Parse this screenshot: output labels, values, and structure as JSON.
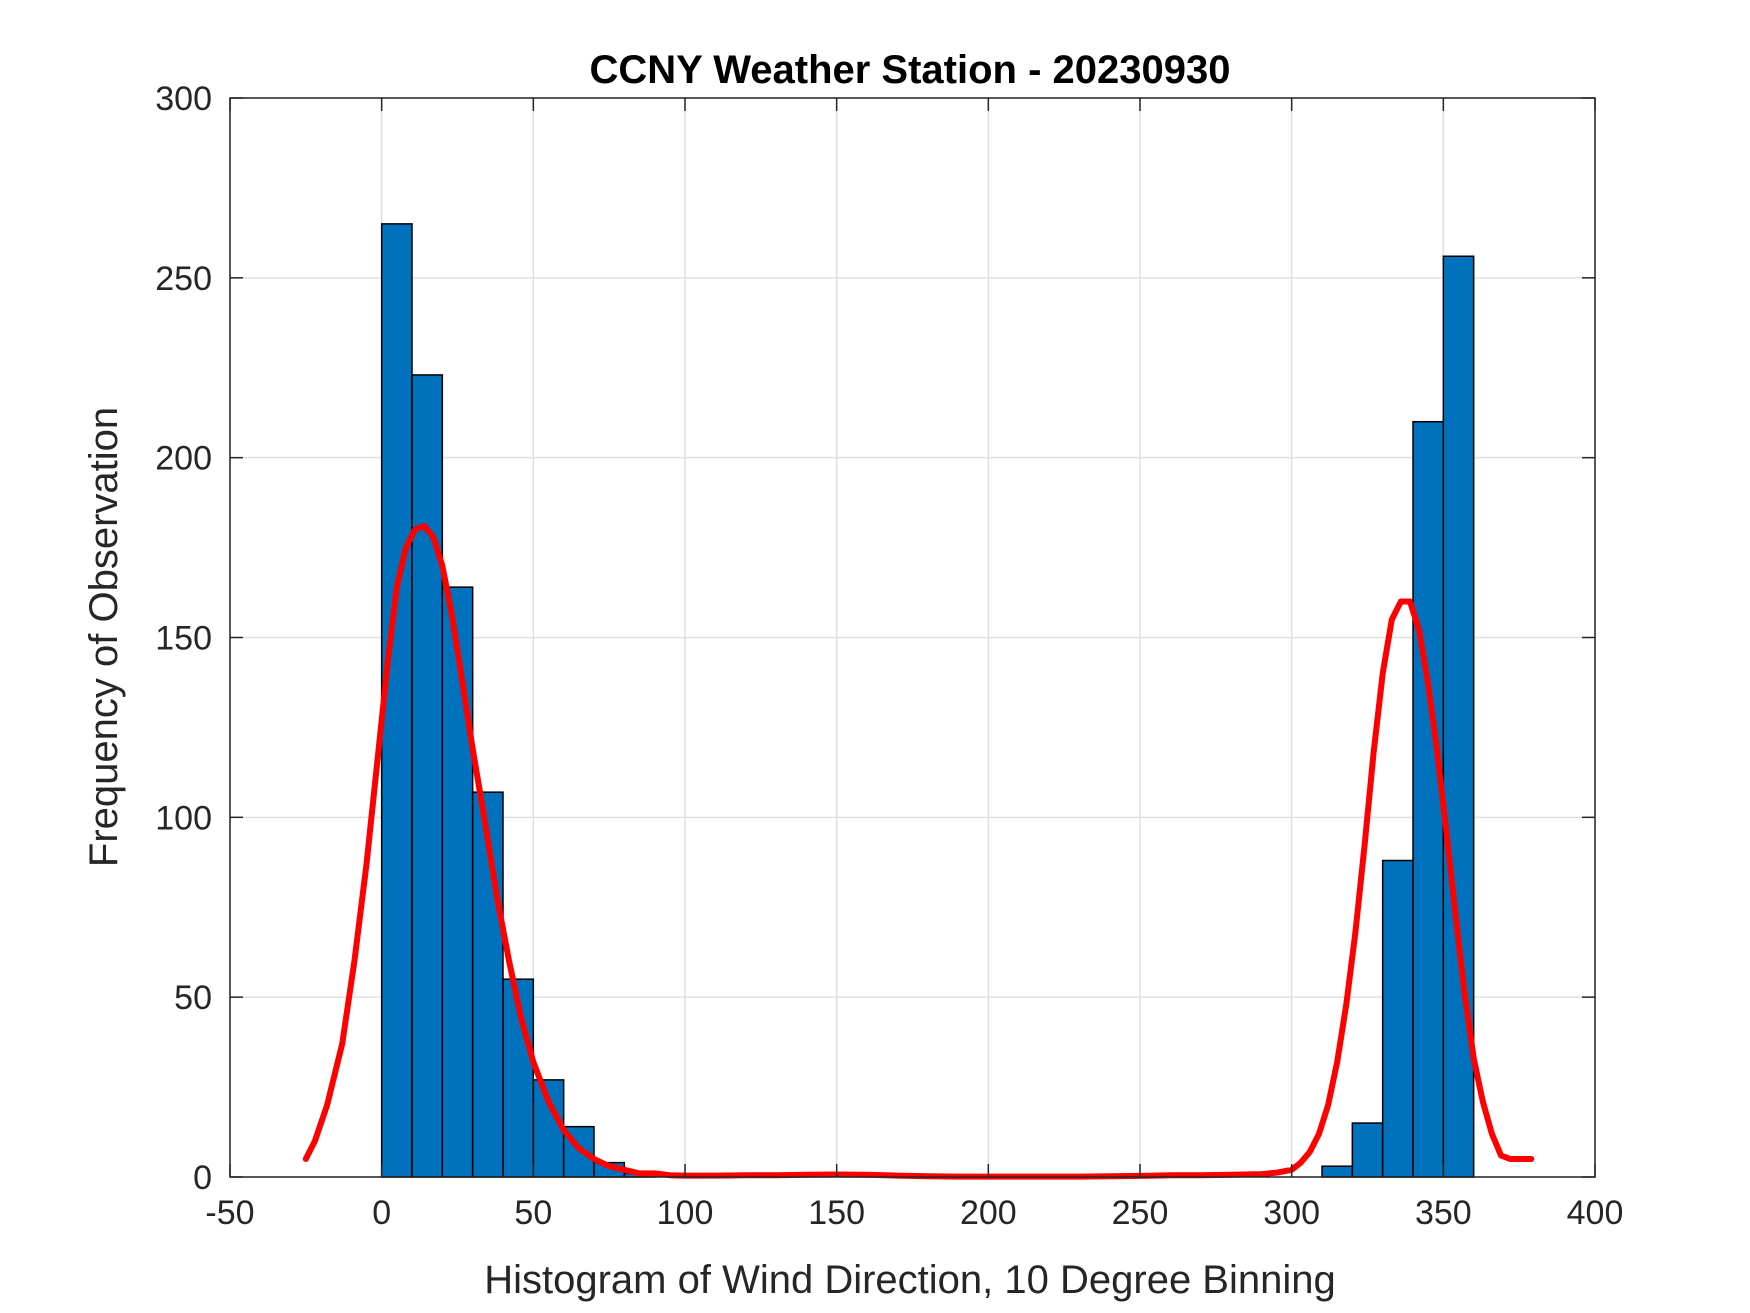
{
  "colors": {
    "bar_fill": "#0072BD",
    "bar_edge": "#000000",
    "curve": "#FF0000",
    "grid": "#E0E0E0",
    "axes": "#262626",
    "background": "#FFFFFF"
  },
  "chart_data": {
    "type": "bar",
    "title": "CCNY Weather Station - 20230930",
    "xlabel": "Histogram of Wind Direction, 10 Degree Binning",
    "ylabel": "Frequency of Observation",
    "xlim": [
      -50,
      400
    ],
    "ylim": [
      0,
      300
    ],
    "grid": true,
    "legend": "none",
    "x_ticks": [
      -50,
      0,
      50,
      100,
      150,
      200,
      250,
      300,
      350,
      400
    ],
    "y_ticks": [
      0,
      50,
      100,
      150,
      200,
      250,
      300
    ],
    "bin_width": 10,
    "bins": [
      {
        "x0": 0,
        "value": 265
      },
      {
        "x0": 10,
        "value": 223
      },
      {
        "x0": 20,
        "value": 164
      },
      {
        "x0": 30,
        "value": 107
      },
      {
        "x0": 40,
        "value": 55
      },
      {
        "x0": 50,
        "value": 27
      },
      {
        "x0": 60,
        "value": 14
      },
      {
        "x0": 70,
        "value": 4
      },
      {
        "x0": 80,
        "value": 1
      },
      {
        "x0": 90,
        "value": 0
      },
      {
        "x0": 100,
        "value": 0
      },
      {
        "x0": 110,
        "value": 0
      },
      {
        "x0": 120,
        "value": 0
      },
      {
        "x0": 130,
        "value": 0
      },
      {
        "x0": 140,
        "value": 0
      },
      {
        "x0": 150,
        "value": 0
      },
      {
        "x0": 160,
        "value": 0
      },
      {
        "x0": 170,
        "value": 0
      },
      {
        "x0": 180,
        "value": 0
      },
      {
        "x0": 190,
        "value": 0
      },
      {
        "x0": 200,
        "value": 0
      },
      {
        "x0": 210,
        "value": 0
      },
      {
        "x0": 220,
        "value": 0
      },
      {
        "x0": 230,
        "value": 0
      },
      {
        "x0": 240,
        "value": 0
      },
      {
        "x0": 250,
        "value": 0
      },
      {
        "x0": 260,
        "value": 0
      },
      {
        "x0": 270,
        "value": 0
      },
      {
        "x0": 280,
        "value": 0
      },
      {
        "x0": 290,
        "value": 0
      },
      {
        "x0": 300,
        "value": 0
      },
      {
        "x0": 310,
        "value": 3
      },
      {
        "x0": 320,
        "value": 15
      },
      {
        "x0": 330,
        "value": 88
      },
      {
        "x0": 340,
        "value": 210
      },
      {
        "x0": 350,
        "value": 256
      }
    ],
    "fit_curve": {
      "x": [
        -25,
        -22,
        -18,
        -13,
        -9,
        -5,
        -2,
        0,
        2,
        5,
        8,
        11,
        14,
        17,
        20,
        23,
        26,
        30,
        34,
        38,
        42,
        46,
        50,
        55,
        60,
        65,
        70,
        75,
        80,
        85,
        90,
        95,
        100,
        110,
        120,
        130,
        140,
        150,
        160,
        170,
        180,
        190,
        200,
        210,
        220,
        230,
        240,
        250,
        260,
        270,
        280,
        290,
        295,
        300,
        303,
        306,
        309,
        312,
        315,
        318,
        321,
        324,
        327,
        330,
        333,
        336,
        339,
        342,
        345,
        348,
        351,
        354,
        357,
        360,
        363,
        366,
        369,
        372,
        375,
        379
      ],
      "y": [
        5,
        10,
        20,
        37,
        60,
        87,
        111,
        127,
        143,
        164,
        175,
        180,
        181,
        178,
        170,
        157,
        141,
        119,
        99,
        78,
        60,
        44,
        32,
        21,
        13,
        8,
        5,
        3,
        2,
        1,
        1,
        0.5,
        0.4,
        0.4,
        0.5,
        0.5,
        0.6,
        0.7,
        0.6,
        0.4,
        0.2,
        0.1,
        0.1,
        0.1,
        0.1,
        0.1,
        0.2,
        0.3,
        0.5,
        0.5,
        0.6,
        0.8,
        1.2,
        2,
        4,
        7,
        12,
        20,
        32,
        48,
        68,
        92,
        118,
        140,
        155,
        160,
        160,
        152,
        137,
        118,
        96,
        73,
        51,
        33,
        21,
        12,
        6,
        5,
        5,
        5
      ]
    }
  }
}
